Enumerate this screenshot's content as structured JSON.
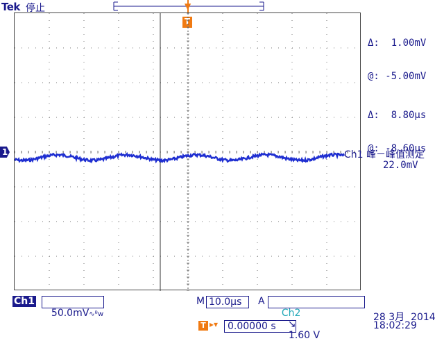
{
  "header": {
    "brand": "Tek",
    "status": "停止"
  },
  "cursor_readout": {
    "delta_v_label": "Δ:",
    "delta_v_value": "1.00mV",
    "at_v_label": "@:",
    "at_v_value": "-5.00mV",
    "delta_t_label": "Δ:",
    "delta_t_value": "8.80µs",
    "at_t_label": "@:",
    "at_t_value": "-8.60µs"
  },
  "measurement": {
    "label": "Ch1 峰－峰值测定",
    "value": "22.0mV"
  },
  "markers": {
    "ch1": "1",
    "trigger": "T"
  },
  "footer": {
    "ch1_label": "Ch1",
    "ch1_scale": "50.0mV",
    "ch1_coupling_icon": "ac-bw-icon",
    "timebase_label": "M",
    "timebase_value": "10.0µs",
    "trigger_mode": "A",
    "trigger_source": "Ch2",
    "trigger_slope_icon": "falling-edge-icon",
    "trigger_level": "1.60 V",
    "trigger_position": "0.00000 s",
    "date": "28 3月  2014",
    "time": "18:02:29"
  },
  "colors": {
    "text": "#1a1a8c",
    "trigger": "#f07a12",
    "ch2": "#21a8b8",
    "trace": "#1f2fd1"
  }
}
